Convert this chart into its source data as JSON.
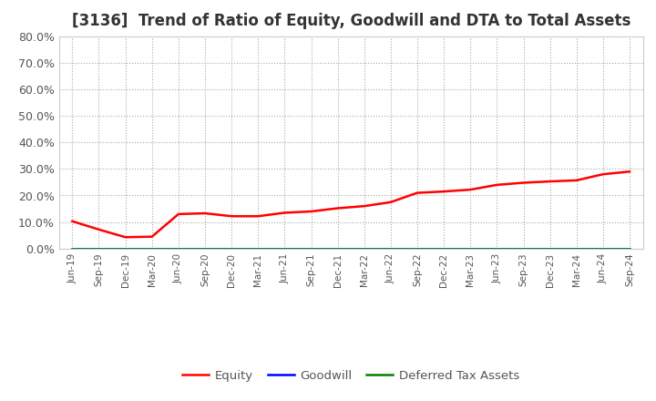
{
  "title": "[3136]  Trend of Ratio of Equity, Goodwill and DTA to Total Assets",
  "title_fontsize": 12,
  "ylim": [
    0.0,
    0.8
  ],
  "yticks": [
    0.0,
    0.1,
    0.2,
    0.3,
    0.4,
    0.5,
    0.6,
    0.7,
    0.8
  ],
  "x_labels": [
    "Jun-19",
    "Sep-19",
    "Dec-19",
    "Mar-20",
    "Jun-20",
    "Sep-20",
    "Dec-20",
    "Mar-21",
    "Jun-21",
    "Sep-21",
    "Dec-21",
    "Mar-22",
    "Jun-22",
    "Sep-22",
    "Dec-22",
    "Mar-23",
    "Jun-23",
    "Sep-23",
    "Dec-23",
    "Mar-24",
    "Jun-24",
    "Sep-24"
  ],
  "equity": [
    0.103,
    0.072,
    0.043,
    0.045,
    0.13,
    0.133,
    0.122,
    0.122,
    0.135,
    0.14,
    0.152,
    0.16,
    0.175,
    0.21,
    0.215,
    0.222,
    0.24,
    0.248,
    0.253,
    0.257,
    0.28,
    0.29
  ],
  "goodwill": [
    0.0,
    0.0,
    0.0,
    0.0,
    0.0,
    0.0,
    0.0,
    0.0,
    0.0,
    0.0,
    0.0,
    0.0,
    0.0,
    0.0,
    0.0,
    0.0,
    0.0,
    0.0,
    0.0,
    0.0,
    0.0,
    0.0
  ],
  "dta": [
    0.0,
    0.0,
    0.0,
    0.0,
    0.0,
    0.0,
    0.0,
    0.0,
    0.0,
    0.0,
    0.0,
    0.0,
    0.0,
    0.0,
    0.0,
    0.0,
    0.0,
    0.0,
    0.0,
    0.0,
    0.0,
    0.0
  ],
  "equity_color": "#ff0000",
  "goodwill_color": "#0000ff",
  "dta_color": "#008000",
  "line_width": 1.8,
  "bg_color": "#ffffff",
  "plot_bg_color": "#ffffff",
  "grid_color": "#aaaaaa",
  "legend_labels": [
    "Equity",
    "Goodwill",
    "Deferred Tax Assets"
  ]
}
